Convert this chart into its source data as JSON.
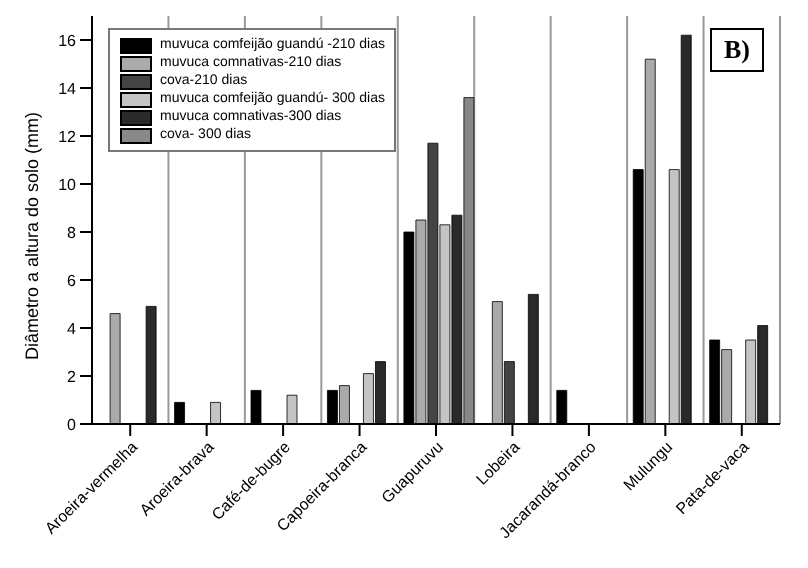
{
  "chart_data": {
    "type": "bar",
    "ylabel": "Diâmetro a altura do solo (mm)",
    "annotations": [
      "B)"
    ],
    "categories": [
      "Aroeira-vermelha",
      "Aroeira-brava",
      "Café-de-bugre",
      "Capoeira-branca",
      "Guapuruvu",
      "Lobeira",
      "Jacarandá-branco",
      "Mulungu",
      "Pata-de-vaca"
    ],
    "series": [
      {
        "name": "muvuca comfeijão guandú -210 dias",
        "color": "#000000",
        "values": [
          null,
          0.9,
          1.4,
          1.4,
          8.0,
          null,
          1.4,
          10.6,
          3.5
        ]
      },
      {
        "name": "muvuca comnativas-210 dias",
        "color": "#aaaaaa",
        "values": [
          4.6,
          null,
          null,
          1.6,
          8.5,
          5.1,
          null,
          15.2,
          3.1
        ]
      },
      {
        "name": "cova-210 dias",
        "color": "#444444",
        "values": [
          null,
          null,
          null,
          null,
          11.7,
          2.6,
          null,
          null,
          null
        ]
      },
      {
        "name": "muvuca comfeijão guandú- 300 dias",
        "color": "#c4c4c4",
        "values": [
          null,
          0.9,
          1.2,
          2.1,
          8.3,
          null,
          null,
          10.6,
          3.5
        ]
      },
      {
        "name": "muvuca comnativas-300 dias",
        "color": "#2a2a2a",
        "values": [
          4.9,
          null,
          null,
          2.6,
          8.7,
          5.4,
          null,
          16.2,
          4.1
        ]
      },
      {
        "name": "cova- 300 dias",
        "color": "#888888",
        "values": [
          null,
          null,
          null,
          null,
          13.6,
          null,
          null,
          null,
          null
        ]
      }
    ],
    "ylim": [
      0,
      17
    ],
    "yticks": [
      0,
      2,
      4,
      6,
      8,
      10,
      12,
      14,
      16
    ],
    "grid": "x",
    "legend": "top left"
  }
}
